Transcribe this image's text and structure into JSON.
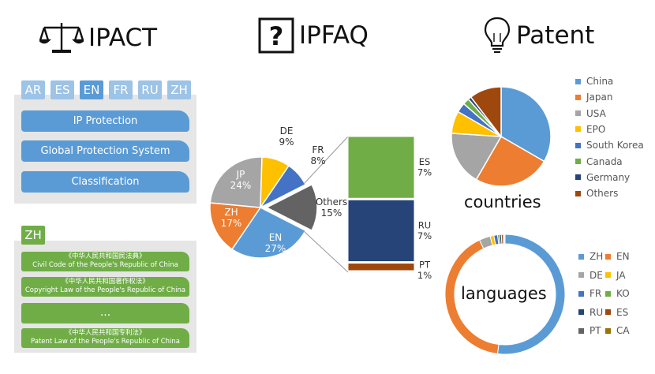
{
  "headers": {
    "ipact": "IPACT",
    "ipfaq": "IPFAQ",
    "patent": "Patent",
    "ipfaq_glyph": "?"
  },
  "ipact_panel": {
    "tabs": [
      "AR",
      "ES",
      "EN",
      "FR",
      "RU",
      "ZH"
    ],
    "active_tab": "EN",
    "menu": [
      "IP Protection",
      "Global Protection System",
      "Classification"
    ]
  },
  "zh_panel": {
    "tab": "ZH",
    "laws": [
      {
        "zh": "《中华人民共和国民法典》",
        "en": "Civil Code of the People's Republic of China"
      },
      {
        "zh": "《中华人民共和国著作权法》",
        "en": "Copyright Law of the People's Republic of China"
      },
      {
        "zh": "...",
        "en": ""
      },
      {
        "zh": "《中华人民共和国专利法》",
        "en": "Patent Law of the People's Republic of China"
      }
    ]
  },
  "colors": {
    "blue": "#5b9bd5",
    "orange": "#ed7d31",
    "gray": "#a5a5a5",
    "yellow": "#ffc000",
    "darkblue": "#4472c4",
    "green": "#70ad47",
    "navy": "#264478",
    "brown": "#9e480e",
    "darkgray": "#636363",
    "gold": "#997300"
  },
  "chart_data": [
    {
      "type": "pie",
      "categories": [
        "EN",
        "ZH",
        "JP",
        "DE",
        "FR",
        "Others"
      ],
      "values": [
        27,
        17,
        24,
        9,
        8,
        15
      ],
      "labels": [
        "EN\n27%",
        "ZH\n17%",
        "JP\n24%",
        "DE\n9%",
        "FR\n8%",
        "Others\n15%"
      ],
      "breakdown": {
        "of": "Others",
        "type": "bar",
        "categories": [
          "ES",
          "RU",
          "PT"
        ],
        "values": [
          7,
          7,
          1
        ],
        "labels": [
          "ES\n7%",
          "RU\n7%",
          "PT\n1%"
        ]
      }
    },
    {
      "type": "pie",
      "label": "countries",
      "categories": [
        "China",
        "Japan",
        "USA",
        "EPO",
        "South Korea",
        "Canada",
        "Germany",
        "Others"
      ],
      "values": [
        32,
        24,
        17,
        7,
        3,
        2,
        1,
        10
      ],
      "legend": "right"
    },
    {
      "type": "pie",
      "label": "languages",
      "categories": [
        "ZH",
        "EN",
        "DE",
        "JA",
        "FR",
        "KO",
        "RU",
        "ES",
        "PT",
        "CA"
      ],
      "values": [
        52,
        41,
        3,
        1,
        1,
        0.5,
        0.5,
        0.5,
        0.3,
        0.2
      ],
      "legend": "right"
    }
  ]
}
